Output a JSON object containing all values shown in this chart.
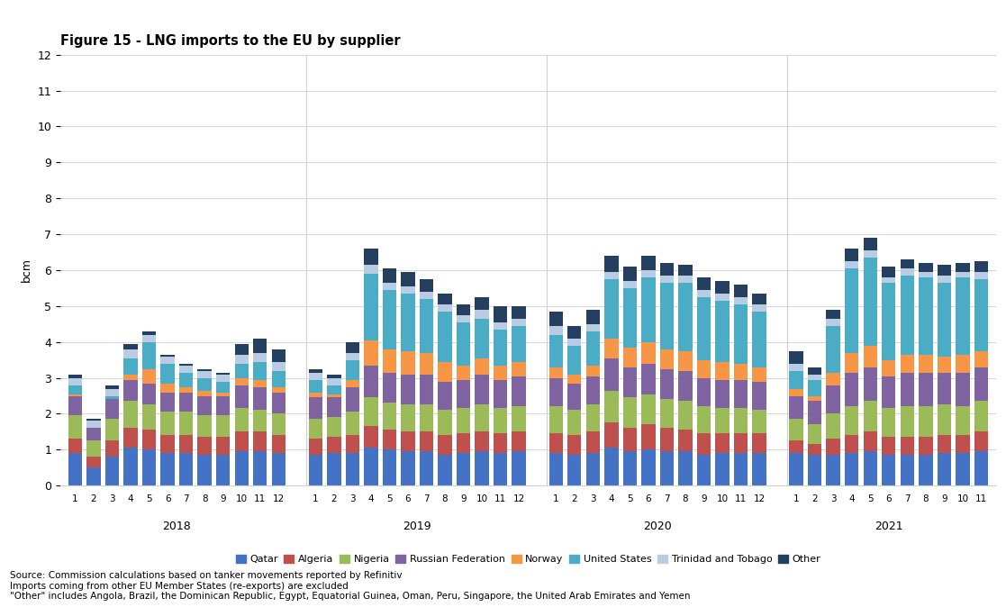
{
  "title": "Figure 15 - LNG imports to the EU by supplier",
  "ylabel": "bcm",
  "ylim": [
    0,
    12
  ],
  "yticks": [
    0,
    1,
    2,
    3,
    4,
    5,
    6,
    7,
    8,
    9,
    10,
    11,
    12
  ],
  "colors": {
    "Qatar": "#4472C4",
    "Algeria": "#C0504D",
    "Nigeria": "#9BBB59",
    "Russian Federation": "#8064A2",
    "Norway": "#F79646",
    "United States": "#4BACC6",
    "Trinidad and Tobago": "#B8CCE4",
    "Other": "#243F60"
  },
  "series_order": [
    "Qatar",
    "Algeria",
    "Nigeria",
    "Russian Federation",
    "Norway",
    "United States",
    "Trinidad and Tobago",
    "Other"
  ],
  "source_text": "Source: Commission calculations based on tanker movements reported by Refinitiv\nImports coming from other EU Member States (re-exports) are excluded\n\"Other\" includes Angola, Brazil, the Dominican Republic, Egypt, Equatorial Guinea, Oman, Peru, Singapore, the United Arab Emirates and Yemen",
  "data": {
    "Qatar": [
      0.9,
      0.5,
      0.8,
      1.05,
      1.0,
      0.9,
      0.9,
      0.85,
      0.85,
      0.95,
      0.95,
      0.9,
      0.85,
      0.9,
      0.9,
      1.05,
      1.0,
      0.95,
      0.95,
      0.85,
      0.9,
      0.95,
      0.9,
      0.95,
      0.9,
      0.85,
      0.9,
      1.05,
      0.95,
      1.0,
      0.95,
      0.95,
      0.85,
      0.9,
      0.9,
      0.9,
      0.9,
      0.85,
      0.85,
      0.9,
      0.95,
      0.85,
      0.85,
      0.85,
      0.9,
      0.9,
      0.95
    ],
    "Algeria": [
      0.4,
      0.3,
      0.45,
      0.55,
      0.55,
      0.5,
      0.5,
      0.5,
      0.5,
      0.55,
      0.55,
      0.5,
      0.45,
      0.45,
      0.5,
      0.6,
      0.55,
      0.55,
      0.55,
      0.55,
      0.55,
      0.55,
      0.55,
      0.55,
      0.55,
      0.55,
      0.6,
      0.7,
      0.65,
      0.7,
      0.65,
      0.6,
      0.6,
      0.55,
      0.55,
      0.55,
      0.35,
      0.3,
      0.45,
      0.5,
      0.55,
      0.5,
      0.5,
      0.5,
      0.5,
      0.5,
      0.55
    ],
    "Nigeria": [
      0.65,
      0.45,
      0.6,
      0.75,
      0.7,
      0.65,
      0.65,
      0.6,
      0.6,
      0.65,
      0.6,
      0.6,
      0.55,
      0.55,
      0.65,
      0.8,
      0.75,
      0.75,
      0.75,
      0.7,
      0.7,
      0.75,
      0.7,
      0.7,
      0.75,
      0.7,
      0.75,
      0.9,
      0.85,
      0.85,
      0.8,
      0.8,
      0.75,
      0.7,
      0.7,
      0.65,
      0.6,
      0.55,
      0.7,
      0.8,
      0.85,
      0.8,
      0.85,
      0.85,
      0.85,
      0.8,
      0.85
    ],
    "Russian Federation": [
      0.55,
      0.35,
      0.55,
      0.6,
      0.6,
      0.55,
      0.55,
      0.55,
      0.55,
      0.65,
      0.65,
      0.6,
      0.6,
      0.55,
      0.7,
      0.9,
      0.85,
      0.85,
      0.85,
      0.8,
      0.8,
      0.85,
      0.8,
      0.85,
      0.8,
      0.75,
      0.8,
      0.9,
      0.85,
      0.85,
      0.85,
      0.85,
      0.8,
      0.8,
      0.8,
      0.8,
      0.65,
      0.65,
      0.8,
      0.95,
      0.95,
      0.9,
      0.95,
      0.95,
      0.9,
      0.95,
      0.95
    ],
    "Norway": [
      0.05,
      0.0,
      0.0,
      0.15,
      0.4,
      0.25,
      0.15,
      0.15,
      0.1,
      0.2,
      0.2,
      0.15,
      0.15,
      0.1,
      0.2,
      0.7,
      0.65,
      0.65,
      0.6,
      0.55,
      0.4,
      0.45,
      0.4,
      0.4,
      0.3,
      0.25,
      0.3,
      0.55,
      0.55,
      0.6,
      0.55,
      0.55,
      0.5,
      0.5,
      0.45,
      0.4,
      0.2,
      0.15,
      0.35,
      0.55,
      0.6,
      0.45,
      0.5,
      0.5,
      0.45,
      0.5,
      0.45
    ],
    "United States": [
      0.25,
      0.0,
      0.1,
      0.45,
      0.75,
      0.55,
      0.4,
      0.35,
      0.3,
      0.4,
      0.5,
      0.45,
      0.35,
      0.25,
      0.55,
      1.85,
      1.65,
      1.6,
      1.5,
      1.4,
      1.2,
      1.1,
      1.0,
      1.0,
      0.9,
      0.8,
      0.95,
      1.65,
      1.65,
      1.8,
      1.85,
      1.9,
      1.75,
      1.7,
      1.65,
      1.55,
      0.5,
      0.45,
      1.3,
      2.35,
      2.45,
      2.15,
      2.2,
      2.15,
      2.05,
      2.15,
      2.0
    ],
    "Trinidad and Tobago": [
      0.2,
      0.2,
      0.2,
      0.25,
      0.2,
      0.2,
      0.2,
      0.2,
      0.2,
      0.25,
      0.25,
      0.25,
      0.2,
      0.2,
      0.2,
      0.25,
      0.2,
      0.2,
      0.2,
      0.2,
      0.2,
      0.25,
      0.2,
      0.2,
      0.25,
      0.2,
      0.2,
      0.2,
      0.2,
      0.2,
      0.2,
      0.2,
      0.2,
      0.2,
      0.2,
      0.2,
      0.2,
      0.15,
      0.2,
      0.2,
      0.2,
      0.15,
      0.2,
      0.15,
      0.2,
      0.15,
      0.2
    ],
    "Other": [
      0.1,
      0.05,
      0.1,
      0.15,
      0.1,
      0.05,
      0.05,
      0.05,
      0.05,
      0.3,
      0.4,
      0.35,
      0.1,
      0.1,
      0.3,
      0.45,
      0.4,
      0.4,
      0.35,
      0.3,
      0.3,
      0.35,
      0.45,
      0.35,
      0.4,
      0.35,
      0.4,
      0.45,
      0.4,
      0.4,
      0.35,
      0.3,
      0.35,
      0.35,
      0.35,
      0.3,
      0.35,
      0.2,
      0.25,
      0.35,
      0.35,
      0.3,
      0.25,
      0.25,
      0.3,
      0.25,
      0.3
    ]
  }
}
